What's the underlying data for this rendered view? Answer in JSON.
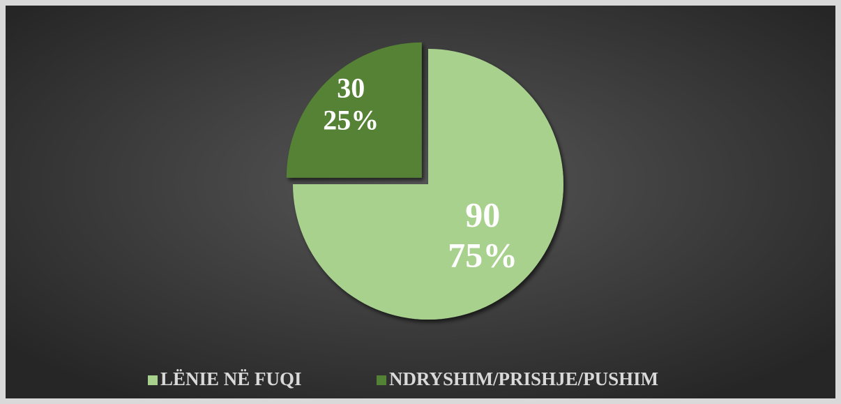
{
  "chart_data": {
    "type": "pie",
    "categories": [
      "LËNIE NË FUQI",
      "NDRYSHIM/PRISHJE/PUSHIM"
    ],
    "values": [
      90,
      30
    ],
    "percentages": [
      75,
      25
    ],
    "percentage_labels": [
      "75%",
      "25%"
    ],
    "colors": [
      "#a9d18e",
      "#548235"
    ],
    "legend": "bottom"
  }
}
